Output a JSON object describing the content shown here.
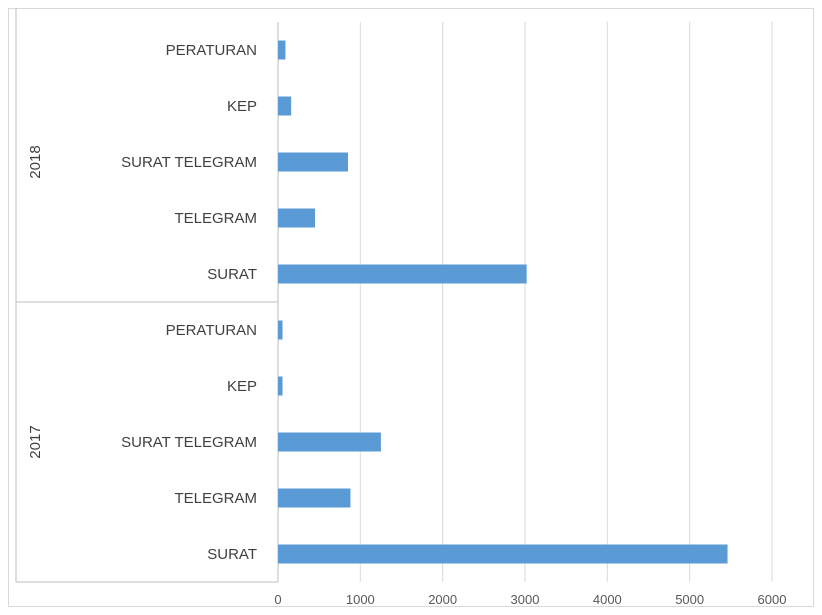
{
  "chart_data": {
    "type": "bar",
    "orientation": "horizontal",
    "title": "",
    "xlabel": "",
    "ylabel": "",
    "xlim": [
      0,
      6000
    ],
    "x_ticks": [
      "0",
      "1000",
      "2000",
      "3000",
      "4000",
      "5000",
      "6000"
    ],
    "grid": true,
    "legend": "none",
    "bar_color": "#5b9bd5",
    "groups": [
      {
        "name": "2018",
        "categories": [
          "PERATURAN",
          "KEP",
          "SURAT TELEGRAM",
          "TELEGRAM",
          "SURAT"
        ],
        "values": [
          90,
          160,
          850,
          450,
          3020
        ]
      },
      {
        "name": "2017",
        "categories": [
          "PERATURAN",
          "KEP",
          "SURAT TELEGRAM",
          "TELEGRAM",
          "SURAT"
        ],
        "values": [
          55,
          55,
          1250,
          880,
          5460
        ]
      }
    ]
  }
}
